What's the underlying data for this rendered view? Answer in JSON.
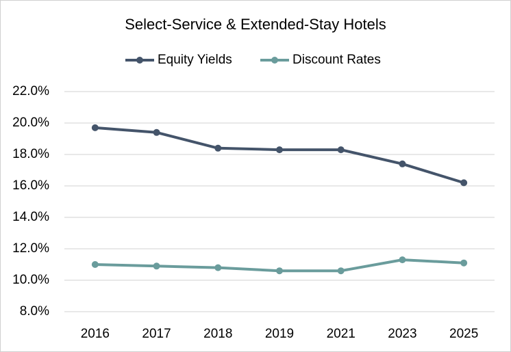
{
  "chart_data": {
    "type": "line",
    "title": "Select-Service & Extended-Stay Hotels",
    "categories": [
      "2016",
      "2017",
      "2018",
      "2019",
      "2021",
      "2023",
      "2025"
    ],
    "series": [
      {
        "name": "Equity Yields",
        "color": "#44546a",
        "values": [
          19.7,
          19.4,
          18.4,
          18.3,
          18.3,
          17.4,
          16.2
        ]
      },
      {
        "name": "Discount Rates",
        "color": "#6a9c9c",
        "values": [
          11.0,
          10.9,
          10.8,
          10.6,
          10.6,
          11.3,
          11.1
        ]
      }
    ],
    "ylim": [
      8,
      22
    ],
    "yticks": [
      {
        "value": 8,
        "label": "8.0%"
      },
      {
        "value": 10,
        "label": "10.0%"
      },
      {
        "value": 12,
        "label": "12.0%"
      },
      {
        "value": 14,
        "label": "14.0%"
      },
      {
        "value": 16,
        "label": "16.0%"
      },
      {
        "value": 18,
        "label": "18.0%"
      },
      {
        "value": 20,
        "label": "20.0%"
      },
      {
        "value": 22,
        "label": "22.0%"
      }
    ],
    "grid": true,
    "legend": "top"
  }
}
